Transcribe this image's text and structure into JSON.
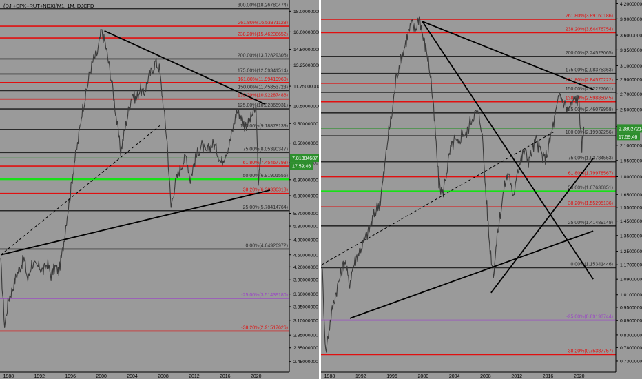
{
  "chart_data": [
    {
      "type": "line",
      "title": "(DJI+SPX+RUT+NDX)/M1, 1M, DJCFD",
      "x_ticks": [
        "1988",
        "1992",
        "1996",
        "2000",
        "2004",
        "2008",
        "2012",
        "2016",
        "2020"
      ],
      "y_ticks": [
        2.45,
        2.65,
        2.85,
        3.1,
        3.35,
        3.6,
        3.9,
        4.2,
        4.5,
        4.9,
        5.3,
        5.7,
        6.3,
        6.9,
        7.6,
        8.5,
        9.5,
        10.5,
        11.75,
        13.25,
        14.5,
        16.0,
        18.0
      ],
      "y_tick_labels": [
        "2.45000000",
        "2.65000000",
        "2.85000000",
        "3.10000000",
        "3.35000000",
        "3.60000000",
        "3.90000000",
        "4.20000000",
        "4.50000000",
        "4.90000000",
        "5.30000000",
        "5.70000000",
        "6.30000000",
        "6.90000000",
        "7.60000000",
        "8.50000000",
        "9.50000000",
        "10.50000000",
        "11.75000000",
        "13.25000000",
        "14.50000000",
        "16.00000000",
        "18.00000000"
      ],
      "fib_levels": [
        {
          "label": "300.00%(18.26780474)",
          "value": 18.2678,
          "color": "#2a2a2a"
        },
        {
          "label": "261.80%(16.53371128)",
          "value": 16.5337,
          "color": "#e01010"
        },
        {
          "label": "238.20%(15.46238652)",
          "value": 15.4624,
          "color": "#e01010"
        },
        {
          "label": "200.00%(13.72829306)",
          "value": 13.7283,
          "color": "#2a2a2a"
        },
        {
          "label": "175.00%(12.59341514)",
          "value": 12.5934,
          "color": "#2a2a2a"
        },
        {
          "label": "161.80%(11.99419960)",
          "value": 11.9942,
          "color": "#e01010"
        },
        {
          "label": "150.00%(11.45853723)",
          "value": 11.4585,
          "color": "#2a2a2a"
        },
        {
          "label": "138.20%(10.92287486)",
          "value": 10.9229,
          "color": "#e01010"
        },
        {
          "label": "125.00%(10.32365931)",
          "value": 10.3237,
          "color": "#2a2a2a"
        },
        {
          "label": "100.00%(9.18878139)",
          "value": 9.1888,
          "color": "#2a2a2a"
        },
        {
          "label": "75.00%(8.05390347)",
          "value": 8.0539,
          "color": "#2a2a2a"
        },
        {
          "label": "61.80%(7.45467793)",
          "value": 7.4547,
          "color": "#e01010"
        },
        {
          "label": "50.00%(6.91901555)",
          "value": 6.919,
          "color": "#18e018"
        },
        {
          "label": "38.20%(6.38336318)",
          "value": 6.3834,
          "color": "#e01010"
        },
        {
          "label": "25.00%(5.78414764)",
          "value": 5.7841,
          "color": "#2a2a2a"
        },
        {
          "label": "0.00%(4.64926972)",
          "value": 4.6493,
          "color": "#2a2a2a"
        },
        {
          "label": "-25.00%(3.51439180)",
          "value": 3.5144,
          "color": "#9a40c8"
        },
        {
          "label": "-38.20%(2.91517626)",
          "value": 2.9152,
          "color": "#e01010"
        }
      ],
      "price_label": "7.81384687",
      "countdown_label": "17:59:46",
      "price_line": 7.8138,
      "series": [
        {
          "x": [
            1987.0,
            1987.5,
            1988.0,
            1988.5,
            1989.0,
            1989.5,
            1990.0,
            1990.5,
            1991.0,
            1991.5,
            1992.0,
            1992.5,
            1993.0,
            1993.5,
            1994.0,
            1994.5,
            1995.0,
            1995.5,
            1996.0,
            1996.5,
            1997.0,
            1997.5,
            1998.0,
            1998.5,
            1999.0,
            1999.5,
            2000.0,
            2000.5,
            2001.0,
            2001.5,
            2002.0,
            2002.5,
            2003.0,
            2003.5,
            2004.0,
            2004.5,
            2005.0,
            2005.5,
            2006.0,
            2006.5,
            2007.0,
            2007.5,
            2008.0,
            2008.5,
            2009.0,
            2009.5,
            2010.0,
            2010.5,
            2011.0,
            2011.5,
            2012.0,
            2012.5,
            2013.0,
            2013.5,
            2014.0,
            2014.5,
            2015.0,
            2015.5,
            2016.0,
            2016.5,
            2017.0,
            2017.5,
            2018.0,
            2018.5,
            2019.0,
            2019.5,
            2020.0,
            2020.3,
            2020.6
          ],
          "values": [
            4.3,
            3.0,
            3.5,
            3.7,
            4.0,
            4.2,
            4.4,
            3.9,
            4.3,
            4.2,
            4.2,
            4.1,
            4.3,
            4.0,
            4.2,
            4.1,
            4.6,
            5.5,
            6.4,
            7.6,
            8.6,
            10.2,
            11.2,
            12.7,
            13.7,
            14.2,
            16.1,
            15.0,
            13.2,
            11.5,
            9.6,
            8.1,
            9.1,
            10.2,
            11.3,
            10.9,
            11.6,
            11.2,
            12.2,
            12.8,
            13.5,
            13.0,
            10.6,
            8.6,
            5.9,
            6.7,
            7.2,
            7.6,
            7.9,
            6.9,
            7.6,
            8.1,
            8.4,
            8.0,
            8.3,
            8.5,
            8.1,
            7.6,
            8.0,
            8.4,
            9.2,
            10.2,
            10.0,
            9.4,
            9.5,
            10.0,
            10.3,
            6.8,
            7.8
          ],
          "color": "#3a3a3a"
        }
      ],
      "trend_lines": [
        {
          "x1": 1987.0,
          "y1": 4.5,
          "x2": 2021.8,
          "y2": 6.5
        },
        {
          "x1": 2000.4,
          "y1": 16.1,
          "x2": 2021.2,
          "y2": 10.6
        },
        {
          "x1": 1987.0,
          "y1": 4.5,
          "x2": 2007.6,
          "y2": 9.4,
          "dashed": true
        }
      ]
    },
    {
      "type": "line",
      "x_ticks": [
        "1988",
        "1992",
        "1996",
        "2000",
        "2004",
        "2008",
        "2012",
        "2016",
        "2020"
      ],
      "y_ticks": [
        0.73,
        0.78,
        0.83,
        0.89,
        0.95,
        1.01,
        1.09,
        1.17,
        1.25,
        1.35,
        1.45,
        1.55,
        1.65,
        1.8,
        1.95,
        2.1,
        2.3,
        2.5,
        2.7,
        2.9,
        3.1,
        3.35,
        3.6,
        3.9,
        4.2
      ],
      "y_tick_labels": [
        "0.73000000",
        "0.78000000",
        "0.83000000",
        "0.89000000",
        "0.95000000",
        "1.01000000",
        "1.09000000",
        "1.17000000",
        "1.25000000",
        "1.35000000",
        "1.45000000",
        "1.55000000",
        "1.65000000",
        "1.80000000",
        "1.95000000",
        "2.10000000",
        "2.30000000",
        "2.50000000",
        "2.70000000",
        "2.90000000",
        "3.10000000",
        "3.35000000",
        "3.60000000",
        "3.90000000",
        "4.20000000"
      ],
      "fib_levels": [
        {
          "label": "261.80%(3.89160186)",
          "value": 3.8916,
          "color": "#e01010"
        },
        {
          "label": "238.20%(3.64476754)",
          "value": 3.6448,
          "color": "#e01010"
        },
        {
          "label": "200.00%(3.24523065)",
          "value": 3.2452,
          "color": "#2a2a2a"
        },
        {
          "label": "175.00%(2.98375363)",
          "value": 2.9838,
          "color": "#2a2a2a"
        },
        {
          "label": "161.80%(2.84570222)",
          "value": 2.8457,
          "color": "#e01010"
        },
        {
          "label": "150.00%(2.72227661)",
          "value": 2.7223,
          "color": "#2a2a2a"
        },
        {
          "label": "138.20%(2.59885045)",
          "value": 2.5989,
          "color": "#e01010"
        },
        {
          "label": "125.00%(2.46079958)",
          "value": 2.4608,
          "color": "#2a2a2a"
        },
        {
          "label": "100.00%(2.19932256)",
          "value": 2.1993,
          "color": "#2a2a2a"
        },
        {
          "label": "75.00%(1.93784553)",
          "value": 1.9378,
          "color": "#2a2a2a"
        },
        {
          "label": "61.80%(1.79978567)",
          "value": 1.7998,
          "color": "#e01010"
        },
        {
          "label": "50.00%(1.67636851)",
          "value": 1.6764,
          "color": "#18e018"
        },
        {
          "label": "38.20%(1.55295136)",
          "value": 1.553,
          "color": "#e01010"
        },
        {
          "label": "25.00%(1.41489149)",
          "value": 1.4149,
          "color": "#2a2a2a"
        },
        {
          "label": "0.00%(1.15341446)",
          "value": 1.1534,
          "color": "#2a2a2a"
        },
        {
          "label": "-25.00%(0.89193744)",
          "value": 0.8919,
          "color": "#9a40c8"
        },
        {
          "label": "-38.20%(0.75387757)",
          "value": 0.7539,
          "color": "#e01010"
        }
      ],
      "price_label": "2.28027214",
      "countdown_label": "17:59:46",
      "price_line": 2.2803,
      "series": [
        {
          "x": [
            1987.0,
            1987.5,
            1988.0,
            1988.5,
            1989.0,
            1989.5,
            1990.0,
            1990.5,
            1991.0,
            1991.5,
            1992.0,
            1992.5,
            1993.0,
            1993.5,
            1994.0,
            1994.5,
            1995.0,
            1995.5,
            1996.0,
            1996.5,
            1997.0,
            1997.5,
            1998.0,
            1998.5,
            1999.0,
            1999.5,
            2000.0,
            2000.5,
            2001.0,
            2001.5,
            2002.0,
            2002.5,
            2003.0,
            2003.5,
            2004.0,
            2004.5,
            2005.0,
            2005.5,
            2006.0,
            2006.5,
            2007.0,
            2007.5,
            2008.0,
            2008.5,
            2009.0,
            2009.5,
            2010.0,
            2010.5,
            2011.0,
            2011.5,
            2012.0,
            2012.5,
            2013.0,
            2013.5,
            2014.0,
            2014.5,
            2015.0,
            2015.5,
            2016.0,
            2016.5,
            2017.0,
            2017.5,
            2018.0,
            2018.5,
            2019.0,
            2019.5,
            2020.0,
            2020.3,
            2020.6
          ],
          "values": [
            1.2,
            0.76,
            0.87,
            0.97,
            1.05,
            1.13,
            1.2,
            1.06,
            1.16,
            1.22,
            1.27,
            1.32,
            1.38,
            1.46,
            1.54,
            1.6,
            1.85,
            2.2,
            2.45,
            2.9,
            3.15,
            3.35,
            3.6,
            3.8,
            3.7,
            3.95,
            3.55,
            3.3,
            2.9,
            2.3,
            1.75,
            1.65,
            1.85,
            2.05,
            2.15,
            2.1,
            2.25,
            2.2,
            2.35,
            2.45,
            2.45,
            2.3,
            1.7,
            1.3,
            1.12,
            1.35,
            1.55,
            1.75,
            1.85,
            1.6,
            1.85,
            1.95,
            2.05,
            1.95,
            2.05,
            2.15,
            2.05,
            1.95,
            2.05,
            2.25,
            2.45,
            2.7,
            2.6,
            2.5,
            2.55,
            2.65,
            2.6,
            2.05,
            2.3
          ],
          "color": "#3a3a3a"
        }
      ],
      "trend_lines": [
        {
          "x1": 1990.6,
          "y1": 0.9,
          "x2": 2021.8,
          "y2": 1.38
        },
        {
          "x1": 1999.9,
          "y1": 3.85,
          "x2": 2021.8,
          "y2": 2.76
        },
        {
          "x1": 1999.9,
          "y1": 3.85,
          "x2": 2021.8,
          "y2": 1.09
        },
        {
          "x1": 2008.7,
          "y1": 1.02,
          "x2": 2021.8,
          "y2": 1.97
        },
        {
          "x1": 1987.0,
          "y1": 1.17,
          "x2": 2016.7,
          "y2": 2.24,
          "dashed": true
        }
      ]
    }
  ]
}
